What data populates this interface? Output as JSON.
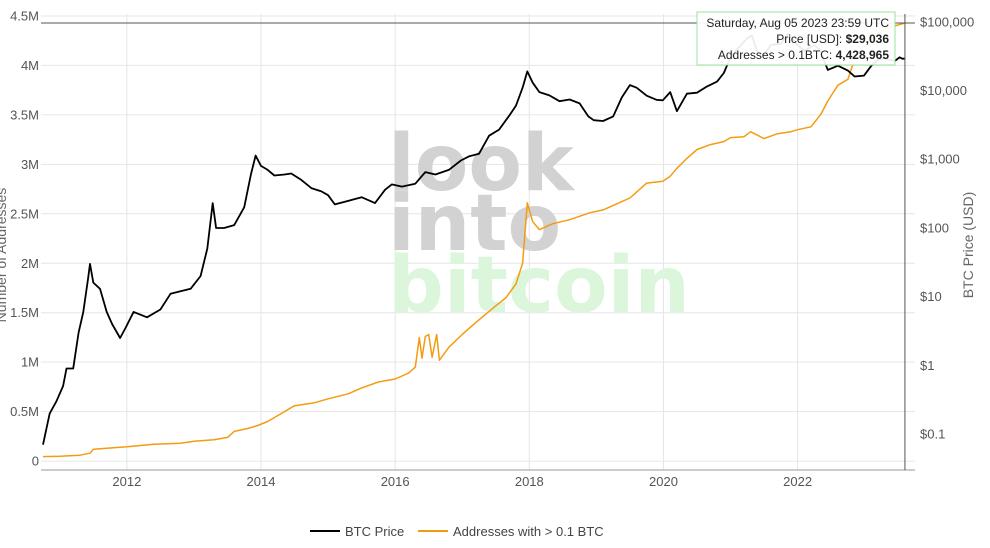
{
  "chart_data": {
    "type": "line",
    "x_tick_labels": [
      "2012",
      "2014",
      "2016",
      "2018",
      "2020",
      "2022"
    ],
    "y_left": {
      "ylabel": "Number of Addresses",
      "ticks": [
        0,
        500000,
        1000000,
        1500000,
        2000000,
        2500000,
        3000000,
        3500000,
        4000000,
        4500000
      ],
      "tick_labels": [
        "0",
        "0.5M",
        "1M",
        "1.5M",
        "2M",
        "2.5M",
        "3M",
        "3.5M",
        "4M",
        "4.5M"
      ],
      "ylim": [
        -90000,
        4520000
      ]
    },
    "y_right": {
      "ylabel": "BTC Price (USD)",
      "scale": "log",
      "ticks": [
        0.1,
        1,
        10,
        100,
        1000,
        10000,
        100000
      ],
      "tick_labels": [
        "$0.1",
        "$1",
        "$10",
        "$100",
        "$1,000",
        "$10,000",
        "$100,000"
      ],
      "ylim": [
        0.03,
        130000
      ]
    },
    "xlim": [
      2010.72,
      2023.75
    ],
    "grid": true,
    "legend_position": "bottom-center",
    "series": [
      {
        "name": "BTC Price",
        "axis": "right",
        "color": "#000000",
        "points": [
          [
            2010.75,
            0.07
          ],
          [
            2010.85,
            0.2
          ],
          [
            2010.95,
            0.3
          ],
          [
            2011.05,
            0.5
          ],
          [
            2011.1,
            0.9
          ],
          [
            2011.2,
            0.9
          ],
          [
            2011.28,
            3
          ],
          [
            2011.35,
            6
          ],
          [
            2011.42,
            18
          ],
          [
            2011.45,
            30
          ],
          [
            2011.5,
            16
          ],
          [
            2011.6,
            13
          ],
          [
            2011.7,
            6
          ],
          [
            2011.78,
            4
          ],
          [
            2011.9,
            2.5
          ],
          [
            2011.98,
            3.5
          ],
          [
            2012.1,
            6
          ],
          [
            2012.3,
            5
          ],
          [
            2012.5,
            6.5
          ],
          [
            2012.65,
            11
          ],
          [
            2012.8,
            12
          ],
          [
            2012.95,
            13
          ],
          [
            2013.1,
            20
          ],
          [
            2013.2,
            50
          ],
          [
            2013.28,
            230
          ],
          [
            2013.33,
            100
          ],
          [
            2013.45,
            100
          ],
          [
            2013.6,
            110
          ],
          [
            2013.75,
            200
          ],
          [
            2013.85,
            600
          ],
          [
            2013.92,
            1130
          ],
          [
            2014.0,
            800
          ],
          [
            2014.1,
            700
          ],
          [
            2014.2,
            580
          ],
          [
            2014.35,
            600
          ],
          [
            2014.45,
            620
          ],
          [
            2014.6,
            500
          ],
          [
            2014.75,
            380
          ],
          [
            2014.9,
            340
          ],
          [
            2015.0,
            300
          ],
          [
            2015.1,
            220
          ],
          [
            2015.25,
            240
          ],
          [
            2015.5,
            280
          ],
          [
            2015.7,
            230
          ],
          [
            2015.85,
            360
          ],
          [
            2015.95,
            430
          ],
          [
            2016.1,
            400
          ],
          [
            2016.3,
            440
          ],
          [
            2016.45,
            650
          ],
          [
            2016.6,
            600
          ],
          [
            2016.8,
            700
          ],
          [
            2016.98,
            960
          ],
          [
            2017.1,
            1100
          ],
          [
            2017.25,
            1200
          ],
          [
            2017.4,
            2200
          ],
          [
            2017.55,
            2700
          ],
          [
            2017.7,
            4300
          ],
          [
            2017.8,
            6000
          ],
          [
            2017.9,
            11000
          ],
          [
            2017.97,
            19000
          ],
          [
            2018.05,
            13000
          ],
          [
            2018.15,
            9500
          ],
          [
            2018.3,
            8500
          ],
          [
            2018.45,
            7000
          ],
          [
            2018.6,
            7400
          ],
          [
            2018.75,
            6500
          ],
          [
            2018.88,
            4200
          ],
          [
            2018.96,
            3700
          ],
          [
            2019.1,
            3600
          ],
          [
            2019.25,
            4200
          ],
          [
            2019.38,
            8000
          ],
          [
            2019.5,
            12000
          ],
          [
            2019.6,
            11000
          ],
          [
            2019.75,
            8400
          ],
          [
            2019.9,
            7300
          ],
          [
            2019.99,
            7200
          ],
          [
            2020.1,
            9500
          ],
          [
            2020.2,
            5000
          ],
          [
            2020.35,
            9000
          ],
          [
            2020.5,
            9300
          ],
          [
            2020.65,
            11500
          ],
          [
            2020.8,
            13500
          ],
          [
            2020.9,
            18000
          ],
          [
            2020.99,
            29000
          ],
          [
            2021.1,
            40000
          ],
          [
            2021.25,
            58000
          ],
          [
            2021.32,
            63000
          ],
          [
            2021.4,
            36000
          ],
          [
            2021.5,
            33000
          ],
          [
            2021.6,
            46000
          ],
          [
            2021.75,
            48000
          ],
          [
            2021.86,
            67000
          ],
          [
            2021.99,
            47000
          ],
          [
            2022.1,
            38000
          ],
          [
            2022.25,
            46000
          ],
          [
            2022.33,
            39000
          ],
          [
            2022.45,
            20000
          ],
          [
            2022.6,
            23000
          ],
          [
            2022.75,
            19500
          ],
          [
            2022.85,
            16000
          ],
          [
            2022.99,
            16500
          ],
          [
            2023.1,
            23000
          ],
          [
            2023.2,
            28000
          ],
          [
            2023.3,
            29000
          ],
          [
            2023.45,
            27000
          ],
          [
            2023.52,
            30500
          ],
          [
            2023.56,
            29100
          ],
          [
            2023.6,
            29036
          ]
        ]
      },
      {
        "name": "Addresses with > 0.1 BTC",
        "axis": "left",
        "color": "#f39c12",
        "points": [
          [
            2010.75,
            45000
          ],
          [
            2011.0,
            50000
          ],
          [
            2011.3,
            60000
          ],
          [
            2011.45,
            80000
          ],
          [
            2011.5,
            120000
          ],
          [
            2011.7,
            130000
          ],
          [
            2012.0,
            145000
          ],
          [
            2012.4,
            170000
          ],
          [
            2012.8,
            180000
          ],
          [
            2013.0,
            200000
          ],
          [
            2013.3,
            215000
          ],
          [
            2013.5,
            240000
          ],
          [
            2013.6,
            300000
          ],
          [
            2013.8,
            330000
          ],
          [
            2013.95,
            360000
          ],
          [
            2014.1,
            400000
          ],
          [
            2014.3,
            480000
          ],
          [
            2014.5,
            560000
          ],
          [
            2014.8,
            590000
          ],
          [
            2015.0,
            630000
          ],
          [
            2015.3,
            680000
          ],
          [
            2015.5,
            740000
          ],
          [
            2015.75,
            800000
          ],
          [
            2016.0,
            830000
          ],
          [
            2016.2,
            890000
          ],
          [
            2016.3,
            950000
          ],
          [
            2016.36,
            1250000
          ],
          [
            2016.4,
            1040000
          ],
          [
            2016.45,
            1260000
          ],
          [
            2016.5,
            1280000
          ],
          [
            2016.55,
            1050000
          ],
          [
            2016.62,
            1280000
          ],
          [
            2016.66,
            1020000
          ],
          [
            2016.8,
            1150000
          ],
          [
            2017.0,
            1280000
          ],
          [
            2017.2,
            1400000
          ],
          [
            2017.5,
            1570000
          ],
          [
            2017.65,
            1650000
          ],
          [
            2017.8,
            1790000
          ],
          [
            2017.9,
            2000000
          ],
          [
            2017.97,
            2610000
          ],
          [
            2018.05,
            2420000
          ],
          [
            2018.15,
            2340000
          ],
          [
            2018.35,
            2400000
          ],
          [
            2018.6,
            2440000
          ],
          [
            2018.9,
            2510000
          ],
          [
            2019.1,
            2540000
          ],
          [
            2019.3,
            2600000
          ],
          [
            2019.5,
            2660000
          ],
          [
            2019.75,
            2810000
          ],
          [
            2019.99,
            2830000
          ],
          [
            2020.1,
            2880000
          ],
          [
            2020.2,
            2960000
          ],
          [
            2020.35,
            3060000
          ],
          [
            2020.5,
            3150000
          ],
          [
            2020.7,
            3200000
          ],
          [
            2020.9,
            3230000
          ],
          [
            2021.0,
            3270000
          ],
          [
            2021.2,
            3280000
          ],
          [
            2021.3,
            3330000
          ],
          [
            2021.5,
            3260000
          ],
          [
            2021.7,
            3310000
          ],
          [
            2021.9,
            3330000
          ],
          [
            2022.0,
            3350000
          ],
          [
            2022.2,
            3380000
          ],
          [
            2022.35,
            3510000
          ],
          [
            2022.45,
            3640000
          ],
          [
            2022.6,
            3800000
          ],
          [
            2022.75,
            3860000
          ],
          [
            2022.88,
            4120000
          ],
          [
            2022.99,
            4200000
          ],
          [
            2023.1,
            4260000
          ],
          [
            2023.25,
            4350000
          ],
          [
            2023.4,
            4390000
          ],
          [
            2023.6,
            4428965
          ]
        ]
      }
    ],
    "watermark": [
      "look",
      "into",
      "bitcoin"
    ],
    "hover": {
      "x": 2023.6,
      "date_text": "Saturday, Aug 05 2023 23:59 UTC",
      "price_label": "Price [USD]: ",
      "price_value": "$29,036",
      "addresses_label": "Addresses > 0.1BTC: ",
      "addresses_value": "4,428,965",
      "addresses": 4428965
    },
    "colors": {
      "grid": "#e6e6e6",
      "tooltip_border": "#9be29b",
      "watermark_gray": "#d2d2d2",
      "watermark_green": "#dbf6db"
    }
  }
}
